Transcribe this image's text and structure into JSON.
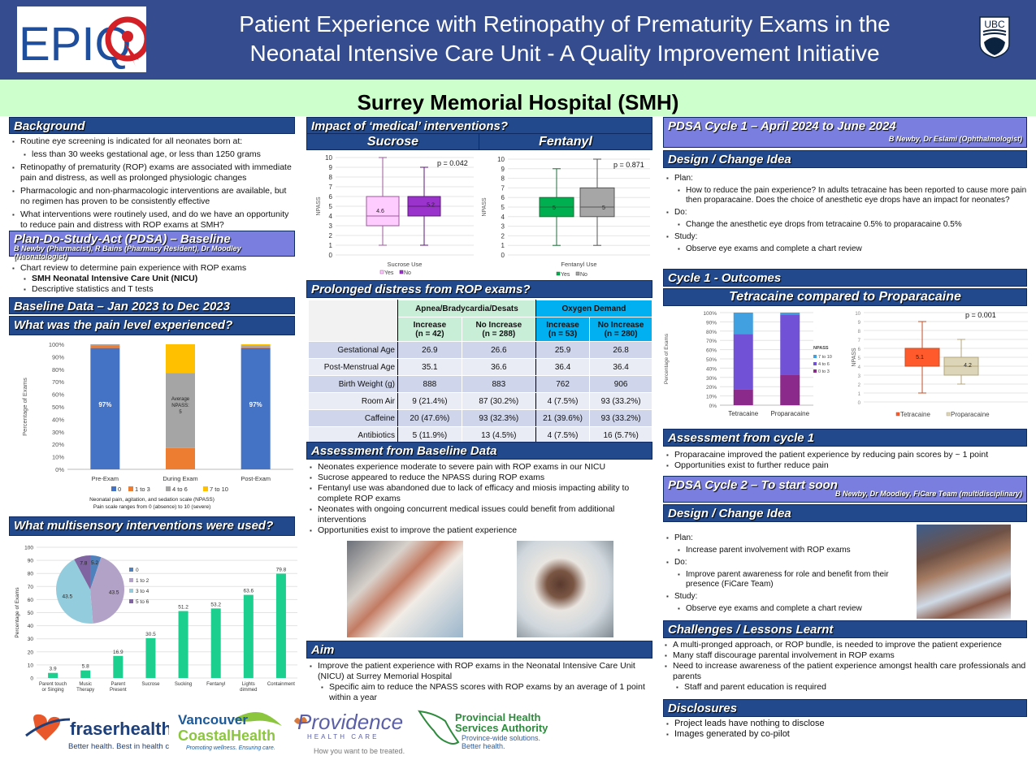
{
  "header": {
    "title_line1": "Patient Experience with Retinopathy of Prematurity Exams in the",
    "title_line2": "Neonatal Intensive Care Unit - A Quality Improvement Initiative",
    "left_logo": "EPIQ",
    "right_logo": "UBC",
    "hospital": "Surrey Memorial Hospital (SMH)"
  },
  "background": {
    "title": "Background",
    "items": [
      {
        "text": "Routine eye screening is indicated for all neonates born at:",
        "level": 1
      },
      {
        "text": "less than 30 weeks gestational age, or less than 1250 grams",
        "level": 2
      },
      {
        "text": "Retinopathy of prematurity (ROP) exams are associated with immediate pain and distress, as well as prolonged physiologic changes",
        "level": 1
      },
      {
        "text": "Pharmacologic and non-pharmacologic interventions are available, but no regimen has proven to be consistently effective",
        "level": 1
      },
      {
        "text": "What interventions were routinely used, and do we have an opportunity to reduce pain and distress with ROP exams at SMH?",
        "level": 1
      }
    ]
  },
  "pdsa_baseline": {
    "title": "Plan-Do-Study-Act (PDSA) – Baseline",
    "authors": "B Newby (Pharmacist), R Bains (Pharmacy Resident), Dr Moodley (Neonatologist)",
    "items": [
      {
        "text": "Chart review to determine pain experience with ROP exams",
        "level": 1
      },
      {
        "text": "SMH Neonatal Intensive Care Unit (NICU)",
        "level": 2,
        "bold": true
      },
      {
        "text": "Descriptive statistics and T tests",
        "level": 2
      }
    ]
  },
  "baseline_data": {
    "title": "Baseline Data – Jan 2023 to Dec 2023",
    "pain_title": "What was the pain level experienced?",
    "pain_note1": "Neonatal pain, agitation, and sedation scale (NPASS)",
    "pain_note2": "Pain scale ranges from 0 (absence) to 10 (severe)",
    "multi_title": "What multisensory interventions were used?"
  },
  "medical": {
    "title": "Impact of ‘medical’ interventions?",
    "sucrose_label": "Sucrose",
    "fentanyl_label": "Fentanyl"
  },
  "distress": {
    "title": "Prolonged distress from ROP exams?",
    "group1": "Apnea/Bradycardia/Desats",
    "group2": "Oxygen Demand",
    "columns": [
      "Increase (n = 42)",
      "No Increase (n = 288)",
      "Increase (n = 53)",
      "No Increase (n = 280)"
    ],
    "rows": [
      {
        "label": "Gestational Age",
        "values": [
          "26.9",
          "26.6",
          "25.9",
          "26.8"
        ]
      },
      {
        "label": "Post-Menstrual Age",
        "values": [
          "35.1",
          "36.6",
          "36.4",
          "36.4"
        ]
      },
      {
        "label": "Birth Weight (g)",
        "values": [
          "888",
          "883",
          "762",
          "906"
        ]
      },
      {
        "label": "Room Air",
        "values": [
          "9 (21.4%)",
          "87 (30.2%)",
          "4 (7.5%)",
          "93 (33.2%)"
        ]
      },
      {
        "label": "Caffeine",
        "values": [
          "20 (47.6%)",
          "93 (32.3%)",
          "21 (39.6%)",
          "93 (33.2%)"
        ]
      },
      {
        "label": "Antibiotics",
        "values": [
          "5 (11.9%)",
          "13 (4.5%)",
          "4 (7.5%)",
          "16 (5.7%)"
        ]
      }
    ]
  },
  "assessment_baseline": {
    "title": "Assessment from Baseline Data",
    "items": [
      "Neonates experience moderate to severe pain with ROP exams in our NICU",
      "Sucrose appeared to reduce the NPASS during ROP exams",
      "Fentanyl use was abandoned due to lack of efficacy and miosis impacting ability to complete ROP exams",
      "Neonates with ongoing concurrent medical issues could benefit from additional interventions",
      "Opportunities exist to improve the patient experience"
    ]
  },
  "aim": {
    "title": "Aim",
    "items": [
      {
        "text": "Improve the patient experience with ROP exams in the Neonatal Intensive Care Unit (NICU) at Surrey Memorial Hospital",
        "level": 1
      },
      {
        "text": "Specific aim to reduce the NPASS scores with ROP exams by an average of 1 point within a year",
        "level": 2
      }
    ]
  },
  "cycle1": {
    "title": "PDSA Cycle 1 – April 2024 to June 2024",
    "authors": "B Newby, Dr Eslami (Ophthalmologist)",
    "design_title": "Design / Change Idea",
    "items": [
      {
        "text": "Plan:",
        "level": 1
      },
      {
        "text": "How to reduce the pain experience? In adults tetracaine has been reported to cause more pain then proparacaine. Does the choice of anesthetic eye drops have an impact for neonates?",
        "level": 2
      },
      {
        "text": "Do:",
        "level": 1
      },
      {
        "text": "Change the anesthetic eye drops from tetracaine 0.5% to proparacaine 0.5%",
        "level": 2
      },
      {
        "text": "Study:",
        "level": 1
      },
      {
        "text": "Observe eye exams and complete a chart review",
        "level": 2
      }
    ],
    "outcomes_title": "Cycle 1 - Outcomes",
    "compare_title": "Tetracaine compared to Proparacaine",
    "assessment_title": "Assessment from cycle 1",
    "assessment_items": [
      "Proparacaine improved the patient experience by reducing pain scores by ~ 1 point",
      "Opportunities exist to further reduce pain"
    ]
  },
  "cycle2": {
    "title": "PDSA Cycle 2 – To start soon",
    "authors": "B Newby, Dr Moodley, FiCare Team (multidisciplinary)",
    "design_title": "Design / Change Idea",
    "items": [
      {
        "text": "Plan:",
        "level": 1
      },
      {
        "text": "Increase parent involvement with ROP exams",
        "level": 2
      },
      {
        "text": "Do:",
        "level": 1
      },
      {
        "text": "Improve parent awareness for role and benefit from their presence (FiCare Team)",
        "level": 2
      },
      {
        "text": "Study:",
        "level": 1
      },
      {
        "text": "Observe eye exams and complete a chart review",
        "level": 2
      }
    ]
  },
  "challenges": {
    "title": "Challenges / Lessons Learnt",
    "items": [
      {
        "text": "A multi-pronged approach, or ROP bundle, is needed to improve the patient experience",
        "level": 1
      },
      {
        "text": "Many staff discourage parental involvement in ROP exams",
        "level": 1
      },
      {
        "text": "Need to increase awareness of the patient experience amongst health care professionals and parents",
        "level": 1
      },
      {
        "text": "Staff and parent education is required",
        "level": 2
      }
    ]
  },
  "disclosures": {
    "title": "Disclosures",
    "items": [
      "Project leads have nothing to disclose",
      "Images generated by co-pilot"
    ]
  },
  "footer_logos": {
    "fraser": "fraserhealth",
    "fraser_tag": "Better health. Best in health care.",
    "vch1": "Vancouver",
    "vch2": "CoastalHealth",
    "vch_tag": "Promoting wellness. Ensuring care.",
    "providence": "Providence",
    "providence_sub": "HEALTH CARE",
    "providence_tag": "How you want to be treated.",
    "phsa1": "Provincial Health",
    "phsa2": "Services Authority",
    "phsa_tag1": "Province-wide solutions.",
    "phsa_tag2": "Better health."
  },
  "chart_data": [
    {
      "id": "pain-level",
      "type": "bar",
      "stacked": true,
      "title": "What was the pain level experienced?",
      "categories": [
        "Pre-Exam",
        "During Exam",
        "Post-Exam"
      ],
      "series": [
        {
          "name": "0",
          "color": "#4472c4",
          "values": [
            97,
            0,
            97
          ]
        },
        {
          "name": "1 to 3",
          "color": "#ed7d31",
          "values": [
            2,
            17,
            0.5
          ]
        },
        {
          "name": "4 to 6",
          "color": "#a5a5a5",
          "values": [
            1,
            60,
            1.5
          ]
        },
        {
          "name": "7 to 10",
          "color": "#ffc000",
          "values": [
            0,
            23,
            1
          ]
        }
      ],
      "data_labels": [
        "97%",
        "Average NPASS: 5",
        "97%"
      ],
      "ylabel": "Percentage of Exams",
      "yticks": [
        "0%",
        "10%",
        "20%",
        "30%",
        "40%",
        "50%",
        "60%",
        "70%",
        "80%",
        "90%",
        "100%"
      ],
      "ylim": [
        0,
        100
      ],
      "legend": "bottom"
    },
    {
      "id": "multisensory",
      "type": "bar",
      "categories": [
        "Parent touch or Singing",
        "Music Therapy",
        "Parent Present",
        "Sucrose",
        "Sucking",
        "Fentanyl",
        "Lights dimmed",
        "Containment"
      ],
      "values": [
        3.9,
        5.8,
        16.9,
        30.5,
        51.2,
        53.2,
        63.6,
        79.8
      ],
      "color": "#1ccf8f",
      "ylabel": "Percentage of Exams",
      "ylim": [
        0,
        100
      ],
      "yticks": [
        0,
        10,
        20,
        30,
        40,
        50,
        60,
        70,
        80,
        90,
        100
      ]
    },
    {
      "id": "multisensory-pie",
      "type": "pie",
      "labels": [
        "0",
        "1 to 2",
        "3 to 4",
        "5 to 6"
      ],
      "values": [
        5.2,
        43.5,
        43.5,
        7.8
      ],
      "colors": [
        "#4f81bd",
        "#b3a2c7",
        "#93cddd",
        "#8064a2"
      ],
      "legend": "right"
    },
    {
      "id": "sucrose-box",
      "type": "box",
      "xlabel": "Sucrose Use",
      "ylabel": "NPASS",
      "ylim": [
        0,
        10
      ],
      "annotation": "p = 0.042",
      "series": [
        {
          "name": "Yes",
          "color": "#ffccff",
          "stroke": "#9e5a9e",
          "min": 1,
          "q1": 3,
          "median": 4,
          "q3": 6,
          "max": 10,
          "mean": 4.6
        },
        {
          "name": "No",
          "color": "#9933cc",
          "stroke": "#5b1a7a",
          "min": 1,
          "q1": 4,
          "median": 5,
          "q3": 6,
          "max": 9,
          "mean": 5.2
        }
      ],
      "legend": "bottom"
    },
    {
      "id": "fentanyl-box",
      "type": "box",
      "xlabel": "Fentanyl Use",
      "ylabel": "NPASS",
      "ylim": [
        0,
        10
      ],
      "annotation": "p = 0.871",
      "series": [
        {
          "name": "Yes",
          "color": "#00b050",
          "stroke": "#1b6e38",
          "min": 1,
          "q1": 4,
          "median": 5,
          "q3": 6,
          "max": 9,
          "mean": 5
        },
        {
          "name": "No",
          "color": "#a6a6a6",
          "stroke": "#555555",
          "min": 1,
          "q1": 4,
          "median": 5,
          "q3": 7,
          "max": 10,
          "mean": 5
        }
      ],
      "legend": "bottom"
    },
    {
      "id": "cycle1-stacked",
      "type": "bar",
      "stacked": true,
      "categories": [
        "Tetracaine",
        "Proparacaine"
      ],
      "series": [
        {
          "name": "0 to 3",
          "color": "#8b2a8b",
          "values": [
            17,
            33
          ]
        },
        {
          "name": "4 to 6",
          "color": "#7152d6",
          "values": [
            60,
            65
          ]
        },
        {
          "name": "7 to 10",
          "color": "#41a0e0",
          "values": [
            23,
            2
          ]
        }
      ],
      "ylabel": "Percentage of Exams",
      "legend_title": "NPASS",
      "yticks": [
        "0%",
        "10%",
        "20%",
        "30%",
        "40%",
        "50%",
        "60%",
        "70%",
        "80%",
        "90%",
        "100%"
      ],
      "ylim": [
        0,
        100
      ],
      "legend": "right"
    },
    {
      "id": "cycle1-box",
      "type": "box",
      "ylabel": "NPASS",
      "ylim": [
        0,
        10
      ],
      "annotation": "p = 0.001",
      "series": [
        {
          "name": "Tetracaine",
          "color": "#ff5a2b",
          "stroke": "#c0502a",
          "min": 1,
          "q1": 4,
          "median": 4,
          "q3": 6,
          "max": 9,
          "mean": 5.1
        },
        {
          "name": "Proparacaine",
          "color": "#ddd5b8",
          "stroke": "#b3a67c",
          "min": 2,
          "q1": 3,
          "median": 4,
          "q3": 5,
          "max": 7,
          "mean": 4.2
        }
      ],
      "legend": "bottom"
    }
  ]
}
